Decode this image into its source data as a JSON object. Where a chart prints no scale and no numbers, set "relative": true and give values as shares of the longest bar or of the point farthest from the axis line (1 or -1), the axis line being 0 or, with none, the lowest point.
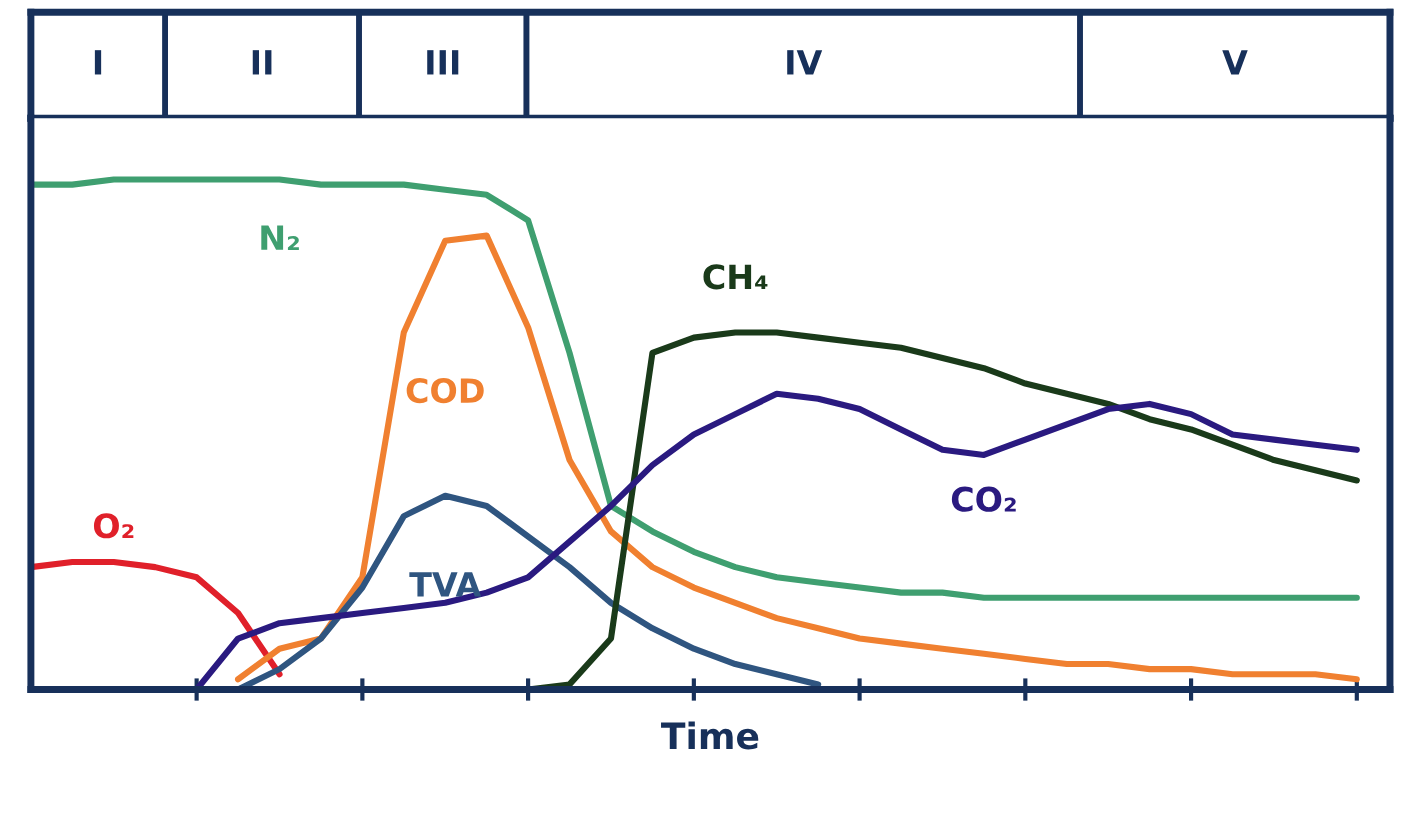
{
  "chart_data": {
    "type": "line",
    "xlabel": "Time",
    "relative": true,
    "categories": [
      null,
      null,
      null,
      null,
      null,
      null,
      null,
      null,
      null,
      null,
      null,
      null,
      null,
      null,
      null,
      null,
      null,
      null,
      null,
      null,
      null,
      null,
      null,
      null,
      null,
      null,
      null,
      null,
      null,
      null,
      null,
      null,
      null
    ],
    "annotations": [
      "I",
      "II",
      "III",
      "IV",
      "V"
    ],
    "series": [
      {
        "name": "N₂",
        "color": "#3f9f70",
        "values": [
          0.99,
          0.99,
          1.0,
          1.0,
          1.0,
          1.0,
          1.0,
          0.99,
          0.99,
          0.99,
          0.98,
          0.97,
          0.92,
          0.66,
          0.36,
          0.31,
          0.27,
          0.24,
          0.22,
          0.21,
          0.2,
          0.19,
          0.19,
          0.18,
          0.18,
          0.18,
          0.18,
          0.18,
          0.18,
          0.18,
          0.18,
          0.18,
          0.18
        ]
      },
      {
        "name": "O₂",
        "color": "#e0202a",
        "values": [
          0.24,
          0.25,
          0.25,
          0.24,
          0.22,
          0.15,
          0.03,
          null,
          null,
          null,
          null,
          null,
          null,
          null,
          null,
          null,
          null,
          null,
          null,
          null,
          null,
          null,
          null,
          null,
          null,
          null,
          null,
          null,
          null,
          null,
          null,
          null,
          null
        ]
      },
      {
        "name": "COD",
        "color": "#f08030",
        "values": [
          null,
          null,
          null,
          null,
          null,
          0.02,
          0.08,
          0.1,
          0.22,
          0.7,
          0.88,
          0.89,
          0.71,
          0.45,
          0.31,
          0.24,
          0.2,
          0.17,
          0.14,
          0.12,
          0.1,
          0.09,
          0.08,
          0.07,
          0.06,
          0.05,
          0.05,
          0.04,
          0.04,
          0.03,
          0.03,
          0.03,
          0.02
        ]
      },
      {
        "name": "TVA",
        "color": "#2f5580",
        "values": [
          null,
          null,
          null,
          null,
          null,
          0,
          0.04,
          0.1,
          0.2,
          0.34,
          0.38,
          0.36,
          0.3,
          0.24,
          0.17,
          0.12,
          0.08,
          0.05,
          0.03,
          0.01,
          null,
          null,
          null,
          null,
          null,
          null,
          null,
          null,
          null,
          null,
          null,
          null,
          null
        ]
      },
      {
        "name": "CH₄",
        "color": "#1a3a1a",
        "values": [
          null,
          null,
          null,
          null,
          null,
          null,
          null,
          null,
          null,
          null,
          null,
          null,
          0,
          0.01,
          0.1,
          0.66,
          0.69,
          0.7,
          0.7,
          0.69,
          0.68,
          0.67,
          0.65,
          0.63,
          0.6,
          0.58,
          0.56,
          0.53,
          0.51,
          0.48,
          0.45,
          0.43,
          0.41
        ]
      },
      {
        "name": "CO₂",
        "color": "#2a1a80",
        "values": [
          null,
          null,
          null,
          null,
          0,
          0.1,
          0.13,
          0.14,
          0.15,
          0.16,
          0.17,
          0.19,
          0.22,
          0.29,
          0.36,
          0.44,
          0.5,
          0.54,
          0.58,
          0.57,
          0.55,
          0.51,
          0.47,
          0.46,
          0.49,
          0.52,
          0.55,
          0.56,
          0.54,
          0.5,
          0.49,
          0.48,
          0.47
        ]
      }
    ]
  }
}
